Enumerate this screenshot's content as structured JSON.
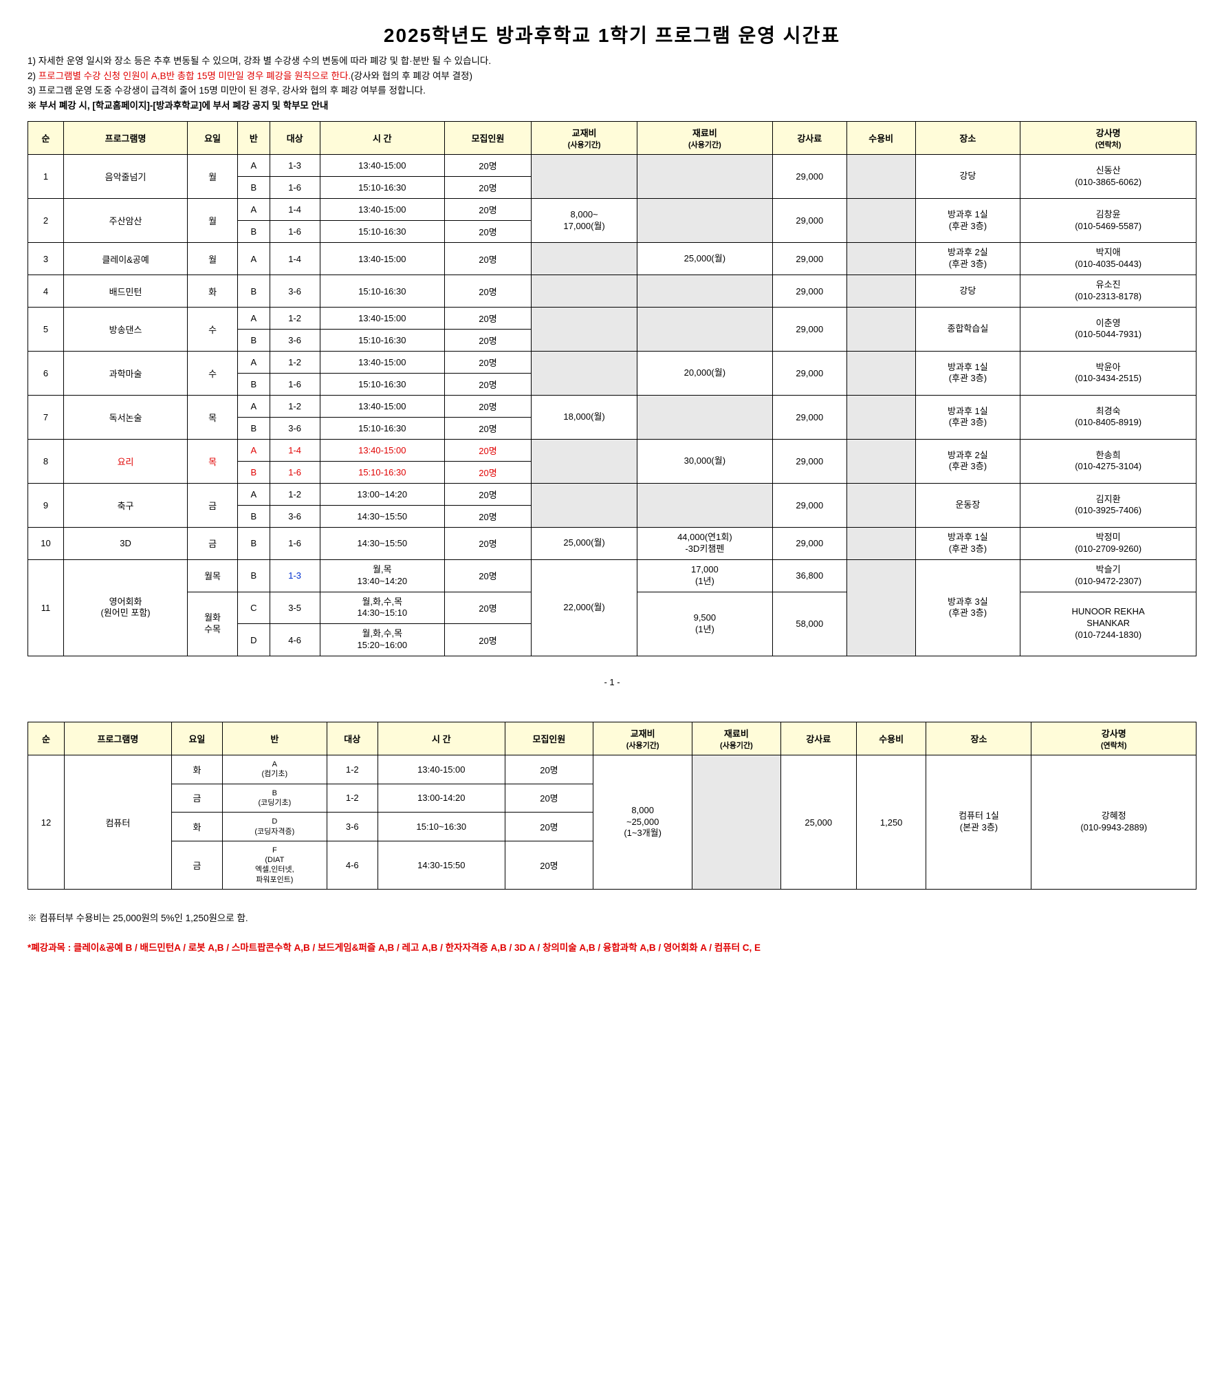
{
  "title": "2025학년도 방과후학교 1학기 프로그램 운영 시간표",
  "notes": {
    "n1": "1) 자세한 운영 일시와 장소 등은 추후 변동될 수 있으며, 강좌 별 수강생 수의 변동에 따라 폐강 및 합·분반 될 수 있습니다.",
    "n2a": "2) ",
    "n2b": "프로그램별 수강 신청 인원이 A,B반 총합 15명 미만일 경우 폐강을 원칙으로 한다.",
    "n2c": "(강사와 협의 후 폐강 여부 결정)",
    "n3": "3) 프로그램 운영 도중 수강생이 급격히 줄어 15명 미만이 된 경우, 강사와 협의 후 폐강 여부를 정합니다.",
    "n4": "※ 부서 폐강 시, [학교홈페이지]-[방과후학교]에 부서 폐강 공지 및 학부모 안내"
  },
  "headers": {
    "num": "순",
    "program": "프로그램명",
    "day": "요일",
    "class": "반",
    "target": "대상",
    "time": "시 간",
    "cap": "모집인원",
    "book": "교재비",
    "book_sub": "(사용기간)",
    "mat": "재료비",
    "mat_sub": "(사용기간)",
    "fee": "강사료",
    "extra": "수용비",
    "place": "장소",
    "teacher": "강사명",
    "teacher_sub": "(연락처)"
  },
  "rows1": [
    {
      "n": "1",
      "prog": "음악줄넘기",
      "day": "월",
      "cls": [
        "A",
        "B"
      ],
      "tgt": [
        "1-3",
        "1-6"
      ],
      "time": [
        "13:40-15:00",
        "15:10-16:30"
      ],
      "cap": [
        "20명",
        "20명"
      ],
      "book": "",
      "mat": "",
      "fee": "29,000",
      "place": "강당",
      "teach": "신동산",
      "phone": "(010-3865-6062)"
    },
    {
      "n": "2",
      "prog": "주산암산",
      "day": "월",
      "cls": [
        "A",
        "B"
      ],
      "tgt": [
        "1-4",
        "1-6"
      ],
      "time": [
        "13:40-15:00",
        "15:10-16:30"
      ],
      "cap": [
        "20명",
        "20명"
      ],
      "book": "8,000~\n17,000(월)",
      "mat": "",
      "fee": "29,000",
      "place": "방과후 1실\n(후관 3층)",
      "teach": "김창윤",
      "phone": "(010-5469-5587)"
    },
    {
      "n": "3",
      "prog": "클레이&공예",
      "day": "월",
      "cls": [
        "A"
      ],
      "tgt": [
        "1-4"
      ],
      "time": [
        "13:40-15:00"
      ],
      "cap": [
        "20명"
      ],
      "book": "",
      "mat": "25,000(월)",
      "fee": "29,000",
      "place": "방과후 2실\n(후관 3층)",
      "teach": "박지애",
      "phone": "(010-4035-0443)"
    },
    {
      "n": "4",
      "prog": "배드민턴",
      "day": "화",
      "cls": [
        "B"
      ],
      "tgt": [
        "3-6"
      ],
      "time": [
        "15:10-16:30"
      ],
      "cap": [
        "20명"
      ],
      "book": "",
      "mat": "",
      "fee": "29,000",
      "place": "강당",
      "teach": "유소진",
      "phone": "(010-2313-8178)"
    },
    {
      "n": "5",
      "prog": "방송댄스",
      "day": "수",
      "cls": [
        "A",
        "B"
      ],
      "tgt": [
        "1-2",
        "3-6"
      ],
      "time": [
        "13:40-15:00",
        "15:10-16:30"
      ],
      "cap": [
        "20명",
        "20명"
      ],
      "book": "",
      "mat": "",
      "fee": "29,000",
      "place": "종합학습실",
      "teach": "이춘영",
      "phone": "(010-5044-7931)"
    },
    {
      "n": "6",
      "prog": "과학마술",
      "day": "수",
      "cls": [
        "A",
        "B"
      ],
      "tgt": [
        "1-2",
        "1-6"
      ],
      "time": [
        "13:40-15:00",
        "15:10-16:30"
      ],
      "cap": [
        "20명",
        "20명"
      ],
      "book": "",
      "mat": "20,000(월)",
      "fee": "29,000",
      "place": "방과후 1실\n(후관 3층)",
      "teach": "박윤아",
      "phone": "(010-3434-2515)"
    },
    {
      "n": "7",
      "prog": "독서논술",
      "day": "목",
      "cls": [
        "A",
        "B"
      ],
      "tgt": [
        "1-2",
        "3-6"
      ],
      "time": [
        "13:40-15:00",
        "15:10-16:30"
      ],
      "cap": [
        "20명",
        "20명"
      ],
      "book": "18,000(월)",
      "mat": "",
      "fee": "29,000",
      "place": "방과후 1실\n(후관 3층)",
      "teach": "최경숙",
      "phone": "(010-8405-8919)"
    },
    {
      "n": "8",
      "prog": "요리",
      "prog_red": true,
      "day": "목",
      "day_red": true,
      "cls": [
        "A",
        "B"
      ],
      "cls_red": true,
      "tgt": [
        "1-4",
        "1-6"
      ],
      "tgt_red": true,
      "time": [
        "13:40-15:00",
        "15:10-16:30"
      ],
      "time_red": true,
      "cap": [
        "20명",
        "20명"
      ],
      "cap_red": true,
      "book": "",
      "mat": "30,000(월)",
      "fee": "29,000",
      "place": "방과후 2실\n(후관 3층)",
      "teach": "한송희",
      "phone": "(010-4275-3104)"
    },
    {
      "n": "9",
      "prog": "축구",
      "day": "금",
      "cls": [
        "A",
        "B"
      ],
      "tgt": [
        "1-2",
        "3-6"
      ],
      "time": [
        "13:00~14:20",
        "14:30~15:50"
      ],
      "cap": [
        "20명",
        "20명"
      ],
      "book": "",
      "mat": "",
      "fee": "29,000",
      "place": "운동장",
      "teach": "김지환",
      "phone": "(010-3925-7406)"
    },
    {
      "n": "10",
      "prog": "3D",
      "day": "금",
      "cls": [
        "B"
      ],
      "tgt": [
        "1-6"
      ],
      "time": [
        "14:30~15:50"
      ],
      "cap": [
        "20명"
      ],
      "book": "25,000(월)",
      "mat": "44,000(연1회)\n-3D키챔펜",
      "fee": "29,000",
      "place": "방과후 1실\n(후관 3층)",
      "teach": "박정미",
      "phone": "(010-2709-9260)"
    }
  ],
  "row11": {
    "n": "11",
    "prog": "영어회화\n(원어민 포함)",
    "day1": "월목",
    "cls1": "B",
    "tgt1": "1-3",
    "tgt1_blue": true,
    "time1": "월,목\n13:40~14:20",
    "cap1": "20명",
    "mat1": "17,000\n(1년)",
    "fee1": "36,800",
    "day2": "월화\n수목",
    "cls2": "C",
    "tgt2": "3-5",
    "time2": "월,화,수,목\n14:30~15:10",
    "cap2": "20명",
    "cls3": "D",
    "tgt3": "4-6",
    "time3": "월,화,수,목\n15:20~16:00",
    "cap3": "20명",
    "book": "22,000(월)",
    "mat2": "9,500\n(1년)",
    "fee2": "58,000",
    "place": "방과후 3실\n(후관 3층)",
    "teach1": "박슬기",
    "phone1": "(010-9472-2307)",
    "teach2": "HUNOOR REKHA\nSHANKAR",
    "phone2": "(010-7244-1830)"
  },
  "page_num": "- 1 -",
  "row12": {
    "n": "12",
    "prog": "컴퓨터",
    "sub": [
      {
        "day": "화",
        "cls": "A\n(컴기초)",
        "tgt": "1-2",
        "time": "13:40-15:00",
        "cap": "20명"
      },
      {
        "day": "금",
        "cls": "B\n(코딩기초)",
        "tgt": "1-2",
        "time": "13:00-14:20",
        "cap": "20명"
      },
      {
        "day": "화",
        "cls": "D\n(코딩자격증)",
        "tgt": "3-6",
        "time": "15:10~16:30",
        "cap": "20명"
      },
      {
        "day": "금",
        "cls": "F\n(DIAT\n엑셀,인터넷,\n파워포인트)",
        "tgt": "4-6",
        "time": "14:30-15:50",
        "cap": "20명"
      }
    ],
    "book": "8,000\n~25,000\n(1~3개월)",
    "fee": "25,000",
    "extra": "1,250",
    "place": "컴퓨터 1실\n(본관 3층)",
    "teach": "강혜정",
    "phone": "(010-9943-2889)"
  },
  "footnote": "※ 컴퓨터부 수용비는 25,000원의 5%인 1,250원으로 함.",
  "closed": "*폐강과목 : 클레이&공예 B / 배드민턴A / 로봇 A,B / 스마트팝콘수학 A,B / 보드게임&퍼즐 A,B / 레고 A,B / 한자자격증 A,B / 3D A / 창의미술 A,B / 융합과학 A,B / 영어회화 A / 컴퓨터 C, E"
}
